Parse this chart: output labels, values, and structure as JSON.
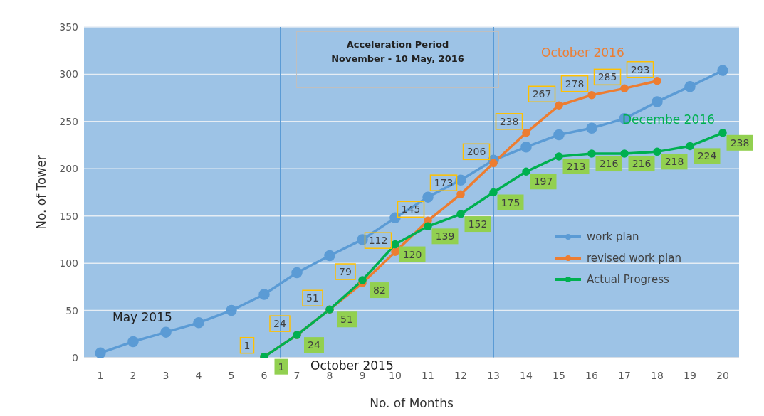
{
  "chart_data": {
    "type": "line",
    "xlabel": "No. of Months",
    "ylabel": "No. of Tower",
    "x": [
      1,
      2,
      3,
      4,
      5,
      6,
      7,
      8,
      9,
      10,
      11,
      12,
      13,
      14,
      15,
      16,
      17,
      18,
      19,
      20
    ],
    "xlim": [
      0.5,
      20.5
    ],
    "xticks": [
      1,
      2,
      3,
      4,
      5,
      6,
      7,
      8,
      9,
      10,
      11,
      12,
      13,
      14,
      15,
      16,
      17,
      18,
      19,
      20
    ],
    "ylim": [
      0,
      350
    ],
    "yticks": [
      0,
      50,
      100,
      150,
      200,
      250,
      300,
      350
    ],
    "grid": "y",
    "legend": "right",
    "marker": "circle",
    "line_style": "solid",
    "series": [
      {
        "name": "work plan",
        "color": "#5b9bd5",
        "values": [
          5,
          17,
          27,
          37,
          50,
          67,
          90,
          108,
          125,
          148,
          170,
          188,
          209,
          223,
          236,
          243,
          253,
          271,
          287,
          304
        ]
      },
      {
        "name": "revised work plan",
        "color": "#ed7d31",
        "values": [
          null,
          null,
          null,
          null,
          null,
          1,
          24,
          51,
          79,
          112,
          145,
          173,
          206,
          238,
          267,
          278,
          285,
          293,
          null,
          null
        ],
        "value_labels": [
          null,
          null,
          null,
          null,
          null,
          "1",
          "24",
          "51",
          "79",
          "112",
          "145",
          "173",
          "206",
          "238",
          "267",
          "278",
          "285",
          "293",
          null,
          null
        ]
      },
      {
        "name": "Actual Progress",
        "color": "#00b050",
        "values": [
          null,
          null,
          null,
          null,
          null,
          1,
          24,
          51,
          82,
          120,
          139,
          152,
          175,
          197,
          213,
          216,
          216,
          218,
          224,
          238
        ],
        "value_labels": [
          null,
          null,
          null,
          null,
          null,
          "1",
          "24",
          "51",
          "82",
          "120",
          "139",
          "152",
          "175",
          "197",
          "213",
          "216",
          "216",
          "218",
          "224",
          "238"
        ]
      }
    ],
    "ref_lines": [
      {
        "axis": "x",
        "value": 6.5,
        "color": "#5b9bd5"
      },
      {
        "axis": "x",
        "value": 13,
        "color": "#5b9bd5"
      }
    ],
    "annotations": [
      "Acceleration Period\nNovember - 10 May, 2016",
      "May 2015",
      "October 2015",
      "October 2016",
      "Decembe 2016"
    ]
  }
}
